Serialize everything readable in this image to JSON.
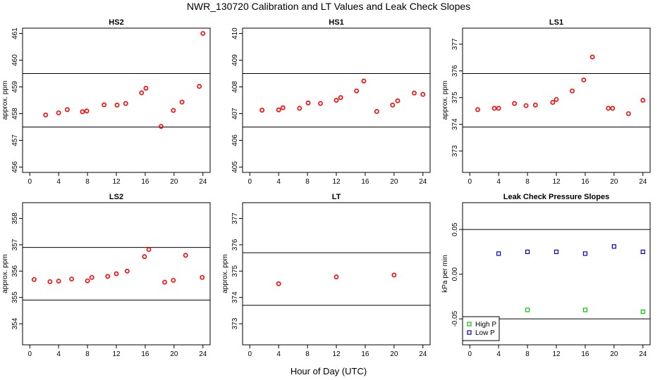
{
  "title": "NWR_130720  Calibration and LT Values and Leak Check Slopes",
  "xlabel": "Hour of Day (UTC)",
  "colors": {
    "cal_points": "#ff0000",
    "high_p": "#00cc00",
    "low_p": "#0000cc",
    "frame": "#000000"
  },
  "chart_data": [
    {
      "type": "scatter",
      "title": "HS2",
      "ylabel": "approx. ppm",
      "xlim": [
        -1,
        25
      ],
      "ylim": [
        455.8,
        461.2
      ],
      "xticks": [
        "0",
        "4",
        "8",
        "12",
        "16",
        "20",
        "24"
      ],
      "yticks": [
        "456",
        "457",
        "458",
        "459",
        "460",
        "461"
      ],
      "hlines": [
        459.5,
        457.5
      ],
      "series": [
        {
          "color": "#ff0000",
          "marker": "circle",
          "x": [
            2.2,
            4.0,
            5.2,
            7.3,
            7.9,
            10.3,
            12.1,
            13.3,
            15.5,
            16.1,
            18.2,
            19.9,
            21.1,
            23.5,
            24.0
          ],
          "y": [
            457.95,
            458.03,
            458.15,
            458.07,
            458.1,
            458.33,
            458.32,
            458.38,
            458.78,
            458.95,
            457.52,
            458.12,
            458.43,
            459.02,
            461.0
          ]
        }
      ]
    },
    {
      "type": "scatter",
      "title": "HS1",
      "ylabel": "",
      "xlim": [
        -1,
        25
      ],
      "ylim": [
        404.8,
        410.2
      ],
      "xticks": [
        "0",
        "4",
        "8",
        "12",
        "16",
        "20",
        "24"
      ],
      "yticks": [
        "405",
        "406",
        "407",
        "408",
        "409",
        "410"
      ],
      "hlines": [
        408.5,
        406.5
      ],
      "series": [
        {
          "color": "#ff0000",
          "marker": "circle",
          "x": [
            1.7,
            4.0,
            4.6,
            6.9,
            8.1,
            9.8,
            12.0,
            12.6,
            14.8,
            15.8,
            17.6,
            19.8,
            20.5,
            22.8,
            24.0
          ],
          "y": [
            407.13,
            407.14,
            407.22,
            407.2,
            407.4,
            407.38,
            407.5,
            407.6,
            407.85,
            408.22,
            407.08,
            407.32,
            407.48,
            407.77,
            407.72
          ]
        }
      ]
    },
    {
      "type": "scatter",
      "title": "LS1",
      "ylabel": "approx. ppm",
      "xlim": [
        -1,
        25
      ],
      "ylim": [
        372.2,
        377.6
      ],
      "xticks": [
        "0",
        "4",
        "8",
        "12",
        "16",
        "20",
        "24"
      ],
      "yticks": [
        "373",
        "374",
        "375",
        "376",
        "377"
      ],
      "hlines": [
        375.9,
        373.9
      ],
      "series": [
        {
          "color": "#ff0000",
          "marker": "circle",
          "x": [
            1.1,
            3.4,
            4.0,
            6.2,
            7.8,
            9.1,
            11.5,
            12.0,
            14.2,
            15.8,
            17.0,
            19.2,
            19.8,
            22.0,
            24.0
          ],
          "y": [
            374.55,
            374.6,
            374.6,
            374.78,
            374.7,
            374.72,
            374.82,
            374.93,
            375.25,
            375.66,
            376.52,
            374.6,
            374.6,
            374.4,
            374.9
          ]
        }
      ]
    },
    {
      "type": "scatter",
      "title": "LS2",
      "ylabel": "approx. ppm",
      "xlim": [
        -1,
        25
      ],
      "ylim": [
        353.2,
        358.6
      ],
      "xticks": [
        "0",
        "4",
        "8",
        "12",
        "16",
        "20",
        "24"
      ],
      "yticks": [
        "354",
        "355",
        "356",
        "357",
        "358"
      ],
      "hlines": [
        356.9,
        354.9
      ],
      "series": [
        {
          "color": "#ff0000",
          "marker": "circle",
          "x": [
            0.6,
            2.8,
            4.0,
            5.8,
            8.0,
            8.6,
            10.8,
            12.0,
            13.5,
            15.9,
            16.5,
            18.7,
            19.9,
            21.6,
            23.9
          ],
          "y": [
            355.68,
            355.6,
            355.62,
            355.7,
            355.63,
            355.76,
            355.8,
            355.9,
            356.0,
            356.55,
            356.82,
            355.58,
            355.65,
            356.6,
            355.76
          ]
        }
      ]
    },
    {
      "type": "scatter",
      "title": "LT",
      "ylabel": "approx. ppm",
      "xlim": [
        -1,
        25
      ],
      "ylim": [
        372.2,
        377.6
      ],
      "xticks": [
        "0",
        "4",
        "8",
        "12",
        "16",
        "20",
        "24"
      ],
      "yticks": [
        "373",
        "374",
        "375",
        "376",
        "377"
      ],
      "hlines": [
        375.7,
        373.7
      ],
      "series": [
        {
          "color": "#ff0000",
          "marker": "circle",
          "x": [
            4.0,
            12.0,
            20.0
          ],
          "y": [
            374.52,
            374.78,
            374.85
          ]
        }
      ]
    },
    {
      "type": "scatter",
      "title": "Leak Check Pressure Slopes",
      "ylabel": "kPa per min",
      "xlim": [
        -1,
        25
      ],
      "ylim": [
        -0.079,
        0.08
      ],
      "xticks": [
        "0",
        "4",
        "8",
        "12",
        "16",
        "20",
        "24"
      ],
      "yticks": [
        "-0.05",
        "0.00",
        "0.05"
      ],
      "hlines": [
        0.05,
        -0.05
      ],
      "legend": {
        "position": "bottom-left"
      },
      "series": [
        {
          "name": "High P",
          "color": "#00cc00",
          "marker": "square",
          "x": [
            8.0,
            16.0,
            24.0
          ],
          "y": [
            -0.04,
            -0.04,
            -0.042
          ]
        },
        {
          "name": "Low P",
          "color": "#0000cc",
          "marker": "square",
          "x": [
            4.0,
            8.0,
            12.0,
            16.0,
            20.0,
            24.0
          ],
          "y": [
            0.023,
            0.025,
            0.025,
            0.023,
            0.031,
            0.025
          ]
        }
      ]
    }
  ]
}
